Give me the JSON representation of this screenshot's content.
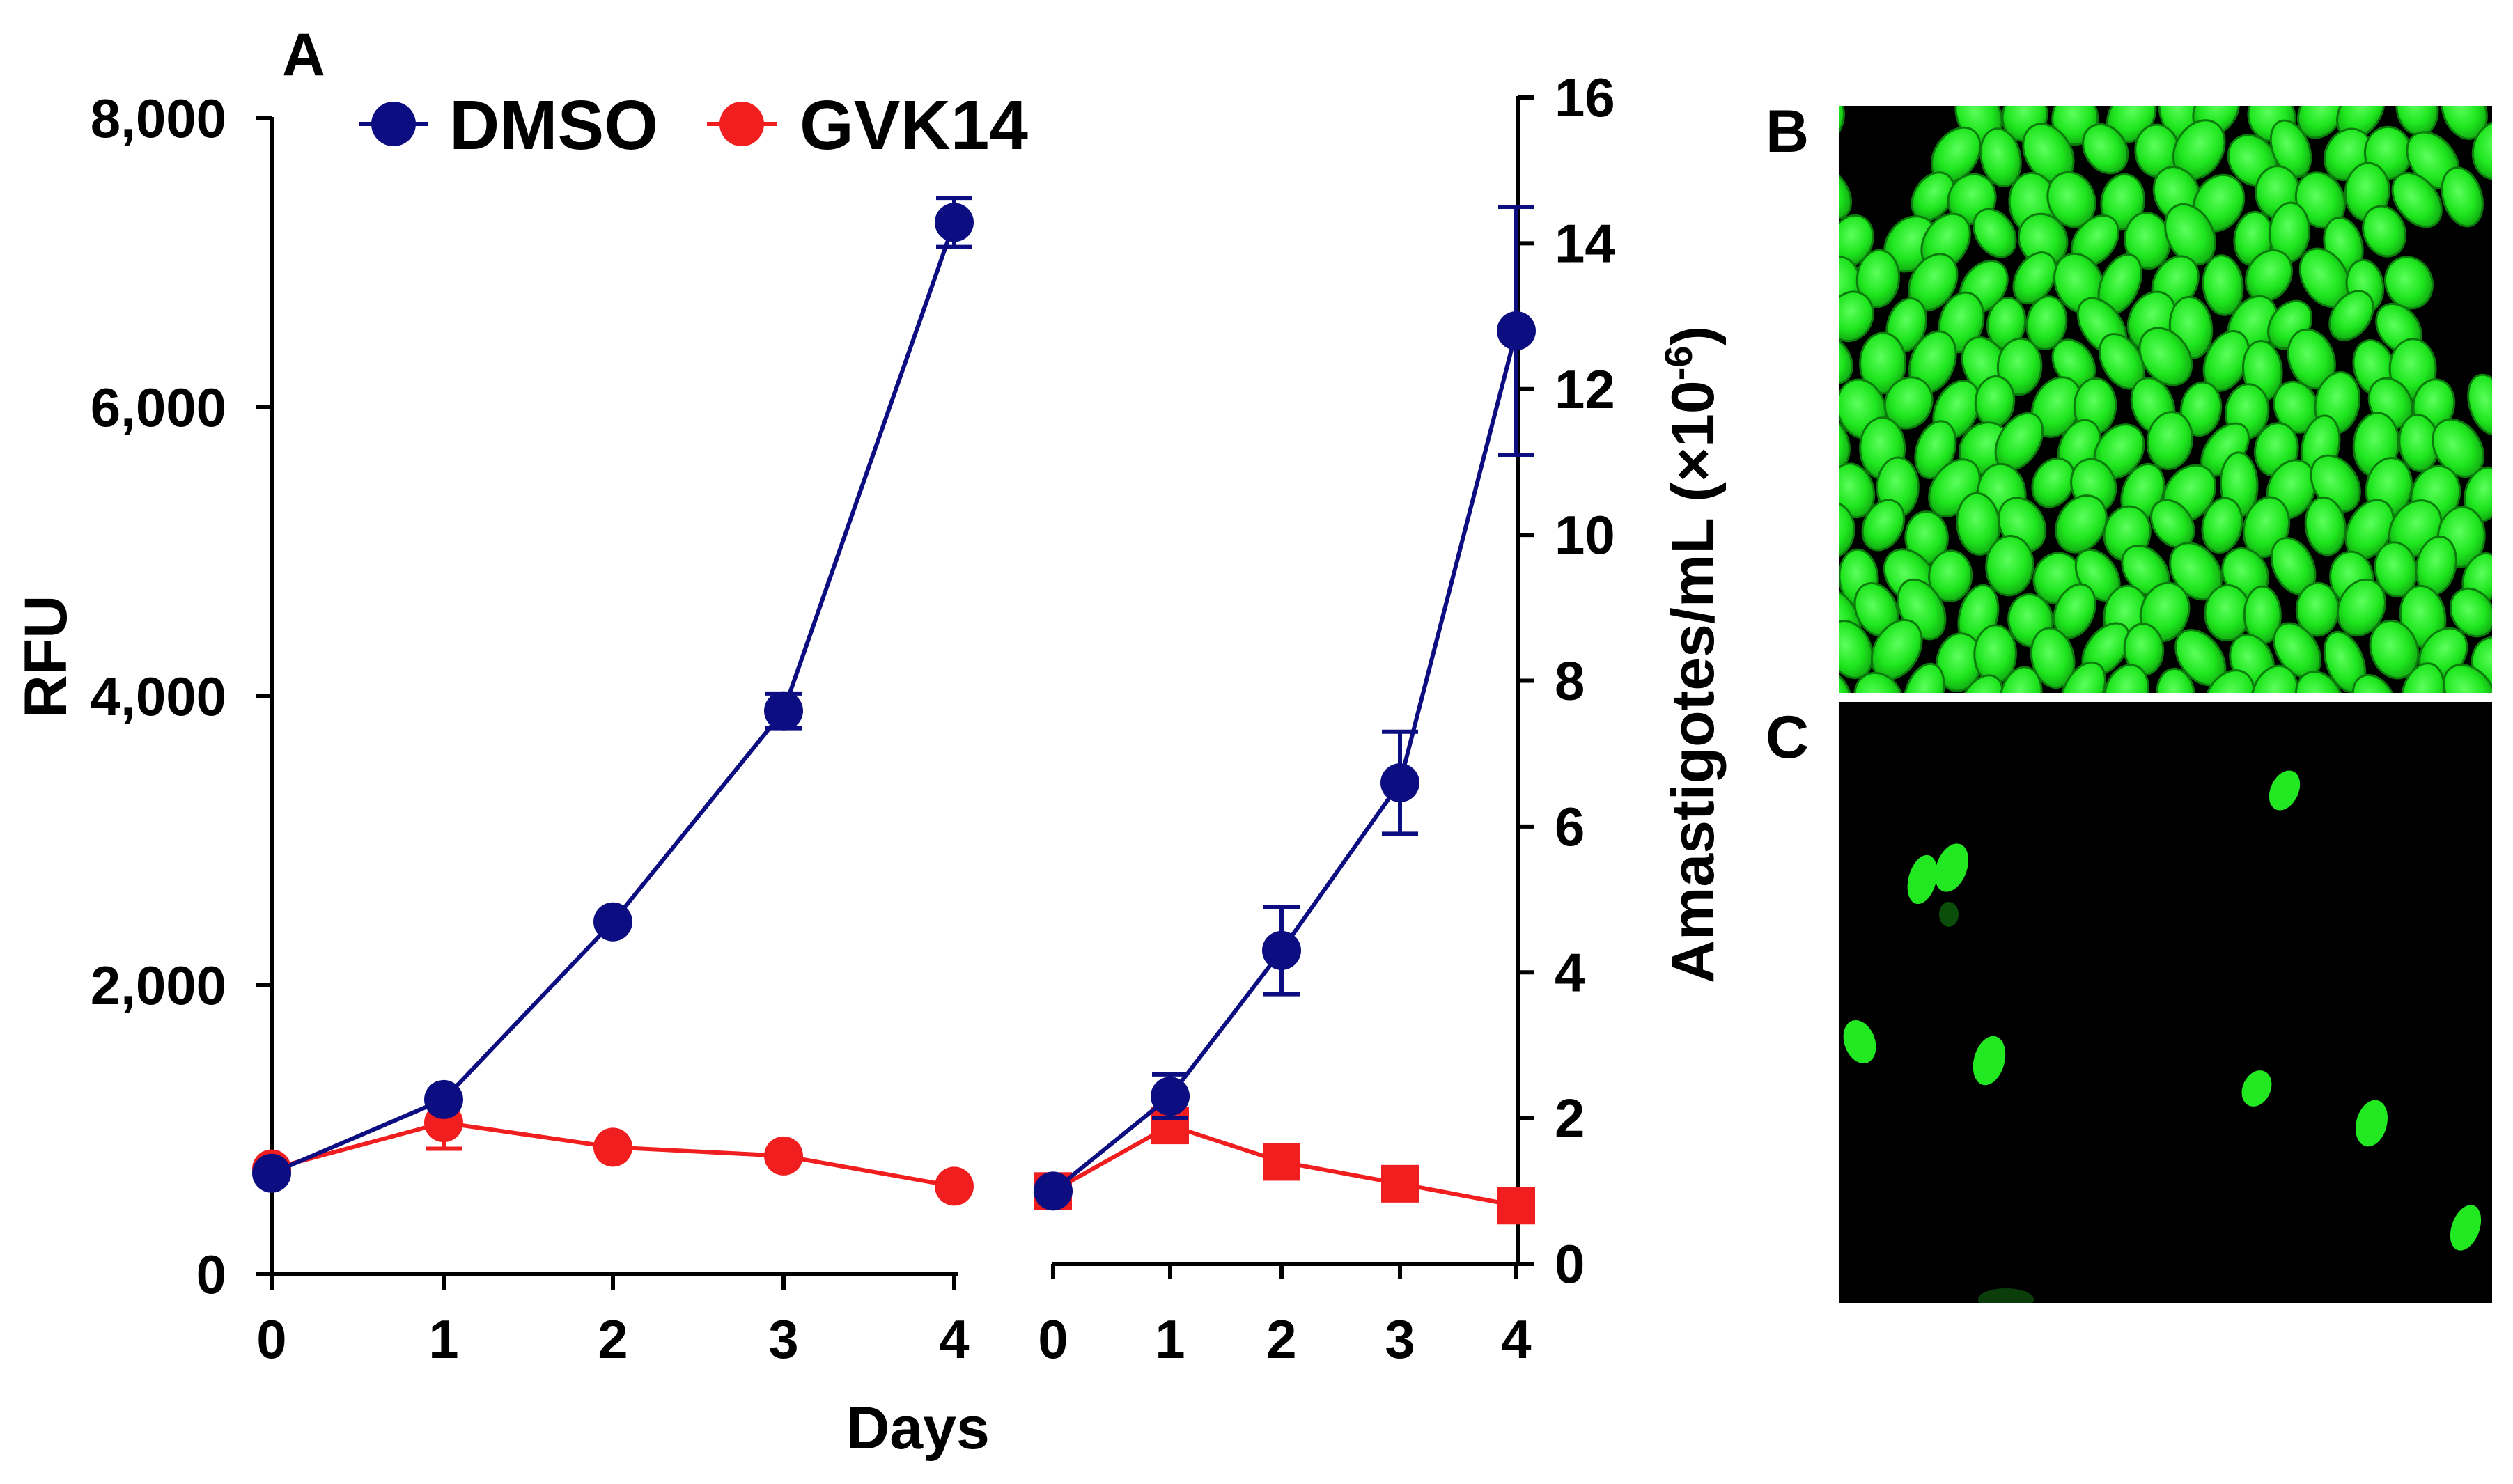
{
  "panel_labels": {
    "a": "A",
    "b": "B",
    "c": "C"
  },
  "legend": [
    {
      "name": "DMSO",
      "color": "#0d0d82"
    },
    {
      "name": "GVK14",
      "color": "#f01e1e"
    }
  ],
  "chart_data": [
    {
      "type": "line",
      "title": "",
      "xlabel": "Days",
      "ylabel": "RFU",
      "ylim": [
        0,
        8000
      ],
      "yticks": [
        "0",
        "2,000",
        "4,000",
        "6,000",
        "8,000"
      ],
      "x": [
        0,
        1,
        2,
        3,
        4
      ],
      "xtick_labels": [
        "0",
        "1",
        "2",
        "3",
        "4"
      ],
      "series": [
        {
          "name": "DMSO",
          "color": "#0d0d82",
          "marker": "circle",
          "values": [
            700,
            1210,
            2440,
            3900,
            7280
          ],
          "errors": [
            0,
            0,
            0,
            120,
            170
          ]
        },
        {
          "name": "GVK14",
          "color": "#f01e1e",
          "marker": "circle",
          "values": [
            730,
            1050,
            880,
            820,
            610
          ],
          "errors": [
            0,
            180,
            0,
            0,
            0
          ]
        }
      ]
    },
    {
      "type": "line",
      "title": "",
      "xlabel": "",
      "ylabel": "Amastigotes/mL (×10",
      "ylabel_exponent": "-6",
      "ylabel_suffix": ")",
      "ylim": [
        0,
        16
      ],
      "yticks": [
        "0",
        "2",
        "4",
        "6",
        "8",
        "10",
        "12",
        "14",
        "16"
      ],
      "x": [
        0,
        1,
        2,
        3,
        4
      ],
      "xtick_labels": [
        "0",
        "1",
        "2",
        "3",
        "4"
      ],
      "series": [
        {
          "name": "DMSO",
          "color": "#0d0d82",
          "marker": "circle",
          "values": [
            1.0,
            2.3,
            4.3,
            6.6,
            12.8
          ],
          "errors": [
            0,
            0.3,
            0.6,
            0.7,
            1.7
          ]
        },
        {
          "name": "GVK14",
          "color": "#f01e1e",
          "marker": "square",
          "values": [
            1.0,
            1.9,
            1.4,
            1.1,
            0.8
          ],
          "errors": [
            0,
            0,
            0,
            0,
            0
          ]
        }
      ]
    }
  ]
}
